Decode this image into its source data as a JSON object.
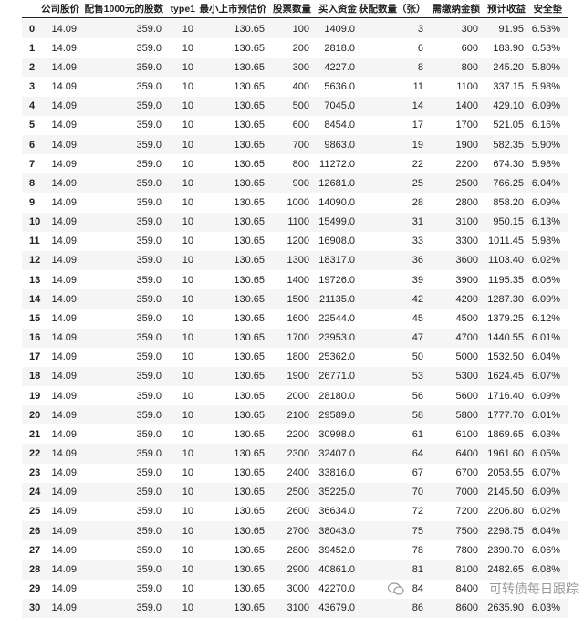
{
  "table": {
    "columns": [
      "",
      "公司股价",
      "配售1000元的股数",
      "type1",
      "最小上市预估价",
      "股票数量",
      "买入资金",
      "获配数量（张）",
      "需缴纳金额",
      "预计收益",
      "安全垫"
    ],
    "rows": [
      [
        "0",
        "14.09",
        "359.0",
        "10",
        "130.65",
        "100",
        "1409.0",
        "3",
        "300",
        "91.95",
        "6.53%"
      ],
      [
        "1",
        "14.09",
        "359.0",
        "10",
        "130.65",
        "200",
        "2818.0",
        "6",
        "600",
        "183.90",
        "6.53%"
      ],
      [
        "2",
        "14.09",
        "359.0",
        "10",
        "130.65",
        "300",
        "4227.0",
        "8",
        "800",
        "245.20",
        "5.80%"
      ],
      [
        "3",
        "14.09",
        "359.0",
        "10",
        "130.65",
        "400",
        "5636.0",
        "11",
        "1100",
        "337.15",
        "5.98%"
      ],
      [
        "4",
        "14.09",
        "359.0",
        "10",
        "130.65",
        "500",
        "7045.0",
        "14",
        "1400",
        "429.10",
        "6.09%"
      ],
      [
        "5",
        "14.09",
        "359.0",
        "10",
        "130.65",
        "600",
        "8454.0",
        "17",
        "1700",
        "521.05",
        "6.16%"
      ],
      [
        "6",
        "14.09",
        "359.0",
        "10",
        "130.65",
        "700",
        "9863.0",
        "19",
        "1900",
        "582.35",
        "5.90%"
      ],
      [
        "7",
        "14.09",
        "359.0",
        "10",
        "130.65",
        "800",
        "11272.0",
        "22",
        "2200",
        "674.30",
        "5.98%"
      ],
      [
        "8",
        "14.09",
        "359.0",
        "10",
        "130.65",
        "900",
        "12681.0",
        "25",
        "2500",
        "766.25",
        "6.04%"
      ],
      [
        "9",
        "14.09",
        "359.0",
        "10",
        "130.65",
        "1000",
        "14090.0",
        "28",
        "2800",
        "858.20",
        "6.09%"
      ],
      [
        "10",
        "14.09",
        "359.0",
        "10",
        "130.65",
        "1100",
        "15499.0",
        "31",
        "3100",
        "950.15",
        "6.13%"
      ],
      [
        "11",
        "14.09",
        "359.0",
        "10",
        "130.65",
        "1200",
        "16908.0",
        "33",
        "3300",
        "1011.45",
        "5.98%"
      ],
      [
        "12",
        "14.09",
        "359.0",
        "10",
        "130.65",
        "1300",
        "18317.0",
        "36",
        "3600",
        "1103.40",
        "6.02%"
      ],
      [
        "13",
        "14.09",
        "359.0",
        "10",
        "130.65",
        "1400",
        "19726.0",
        "39",
        "3900",
        "1195.35",
        "6.06%"
      ],
      [
        "14",
        "14.09",
        "359.0",
        "10",
        "130.65",
        "1500",
        "21135.0",
        "42",
        "4200",
        "1287.30",
        "6.09%"
      ],
      [
        "15",
        "14.09",
        "359.0",
        "10",
        "130.65",
        "1600",
        "22544.0",
        "45",
        "4500",
        "1379.25",
        "6.12%"
      ],
      [
        "16",
        "14.09",
        "359.0",
        "10",
        "130.65",
        "1700",
        "23953.0",
        "47",
        "4700",
        "1440.55",
        "6.01%"
      ],
      [
        "17",
        "14.09",
        "359.0",
        "10",
        "130.65",
        "1800",
        "25362.0",
        "50",
        "5000",
        "1532.50",
        "6.04%"
      ],
      [
        "18",
        "14.09",
        "359.0",
        "10",
        "130.65",
        "1900",
        "26771.0",
        "53",
        "5300",
        "1624.45",
        "6.07%"
      ],
      [
        "19",
        "14.09",
        "359.0",
        "10",
        "130.65",
        "2000",
        "28180.0",
        "56",
        "5600",
        "1716.40",
        "6.09%"
      ],
      [
        "20",
        "14.09",
        "359.0",
        "10",
        "130.65",
        "2100",
        "29589.0",
        "58",
        "5800",
        "1777.70",
        "6.01%"
      ],
      [
        "21",
        "14.09",
        "359.0",
        "10",
        "130.65",
        "2200",
        "30998.0",
        "61",
        "6100",
        "1869.65",
        "6.03%"
      ],
      [
        "22",
        "14.09",
        "359.0",
        "10",
        "130.65",
        "2300",
        "32407.0",
        "64",
        "6400",
        "1961.60",
        "6.05%"
      ],
      [
        "23",
        "14.09",
        "359.0",
        "10",
        "130.65",
        "2400",
        "33816.0",
        "67",
        "6700",
        "2053.55",
        "6.07%"
      ],
      [
        "24",
        "14.09",
        "359.0",
        "10",
        "130.65",
        "2500",
        "35225.0",
        "70",
        "7000",
        "2145.50",
        "6.09%"
      ],
      [
        "25",
        "14.09",
        "359.0",
        "10",
        "130.65",
        "2600",
        "36634.0",
        "72",
        "7200",
        "2206.80",
        "6.02%"
      ],
      [
        "26",
        "14.09",
        "359.0",
        "10",
        "130.65",
        "2700",
        "38043.0",
        "75",
        "7500",
        "2298.75",
        "6.04%"
      ],
      [
        "27",
        "14.09",
        "359.0",
        "10",
        "130.65",
        "2800",
        "39452.0",
        "78",
        "7800",
        "2390.70",
        "6.06%"
      ],
      [
        "28",
        "14.09",
        "359.0",
        "10",
        "130.65",
        "2900",
        "40861.0",
        "81",
        "8100",
        "2482.65",
        "6.08%"
      ],
      [
        "29",
        "14.09",
        "359.0",
        "10",
        "130.65",
        "3000",
        "42270.0",
        "84",
        "8400",
        "",
        ""
      ],
      [
        "30",
        "14.09",
        "359.0",
        "10",
        "130.65",
        "3100",
        "43679.0",
        "86",
        "8600",
        "2635.90",
        "6.03%"
      ]
    ]
  },
  "watermark": {
    "icon": "wechat-icon",
    "text": "可转债每日跟踪"
  }
}
